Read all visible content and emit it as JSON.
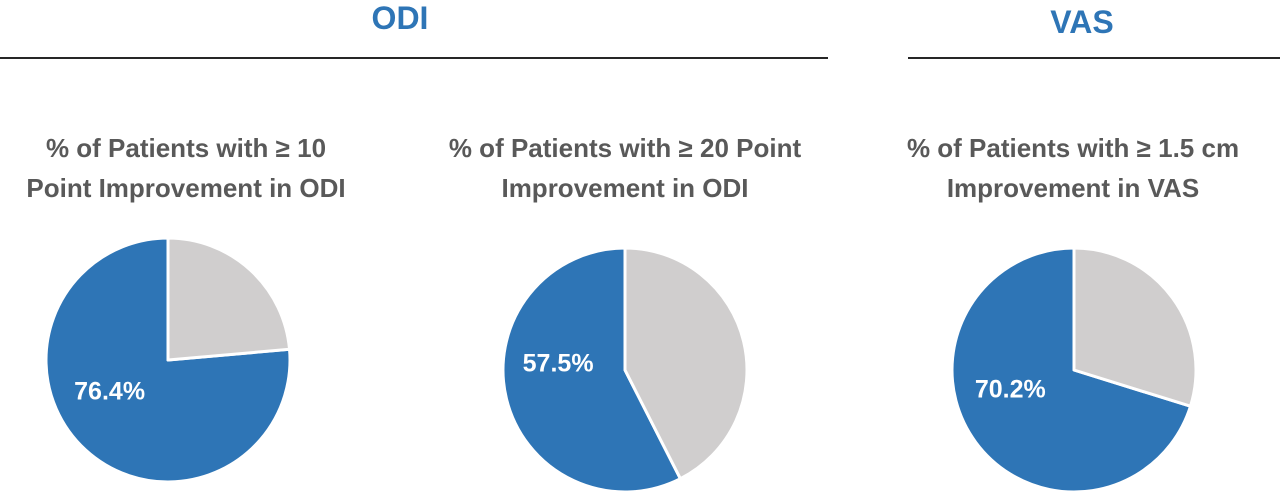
{
  "groups": [
    {
      "title": "ODI"
    },
    {
      "title": "VAS"
    }
  ],
  "colors": {
    "accent": "#2E75B6",
    "remainder": "#D0CECE",
    "rule": "#262626",
    "title_text": "#595959",
    "label_text": "#FFFFFF"
  },
  "chart_data": [
    {
      "type": "pie",
      "group": "ODI",
      "title": "% of Patients with ≥ 10 Point Improvement in ODI",
      "title_lines": [
        "% of Patients with ≥ 10",
        "Point Improvement in ODI"
      ],
      "values": [
        76.4,
        23.6
      ],
      "labels": [
        "76.4%",
        ""
      ],
      "colors": [
        "#2E75B6",
        "#D0CECE"
      ]
    },
    {
      "type": "pie",
      "group": "ODI",
      "title": "% of Patients with ≥ 20 Point Improvement in ODI",
      "title_lines": [
        "% of Patients with ≥ 20 Point",
        "Improvement in ODI"
      ],
      "values": [
        57.5,
        42.5
      ],
      "labels": [
        "57.5%",
        ""
      ],
      "colors": [
        "#2E75B6",
        "#D0CECE"
      ]
    },
    {
      "type": "pie",
      "group": "VAS",
      "title": "% of Patients with ≥ 1.5 cm Improvement in VAS",
      "title_lines": [
        "% of Patients with ≥ 1.5 cm",
        "Improvement in VAS"
      ],
      "values": [
        70.2,
        29.8
      ],
      "labels": [
        "70.2%",
        ""
      ],
      "colors": [
        "#2E75B6",
        "#D0CECE"
      ]
    }
  ]
}
